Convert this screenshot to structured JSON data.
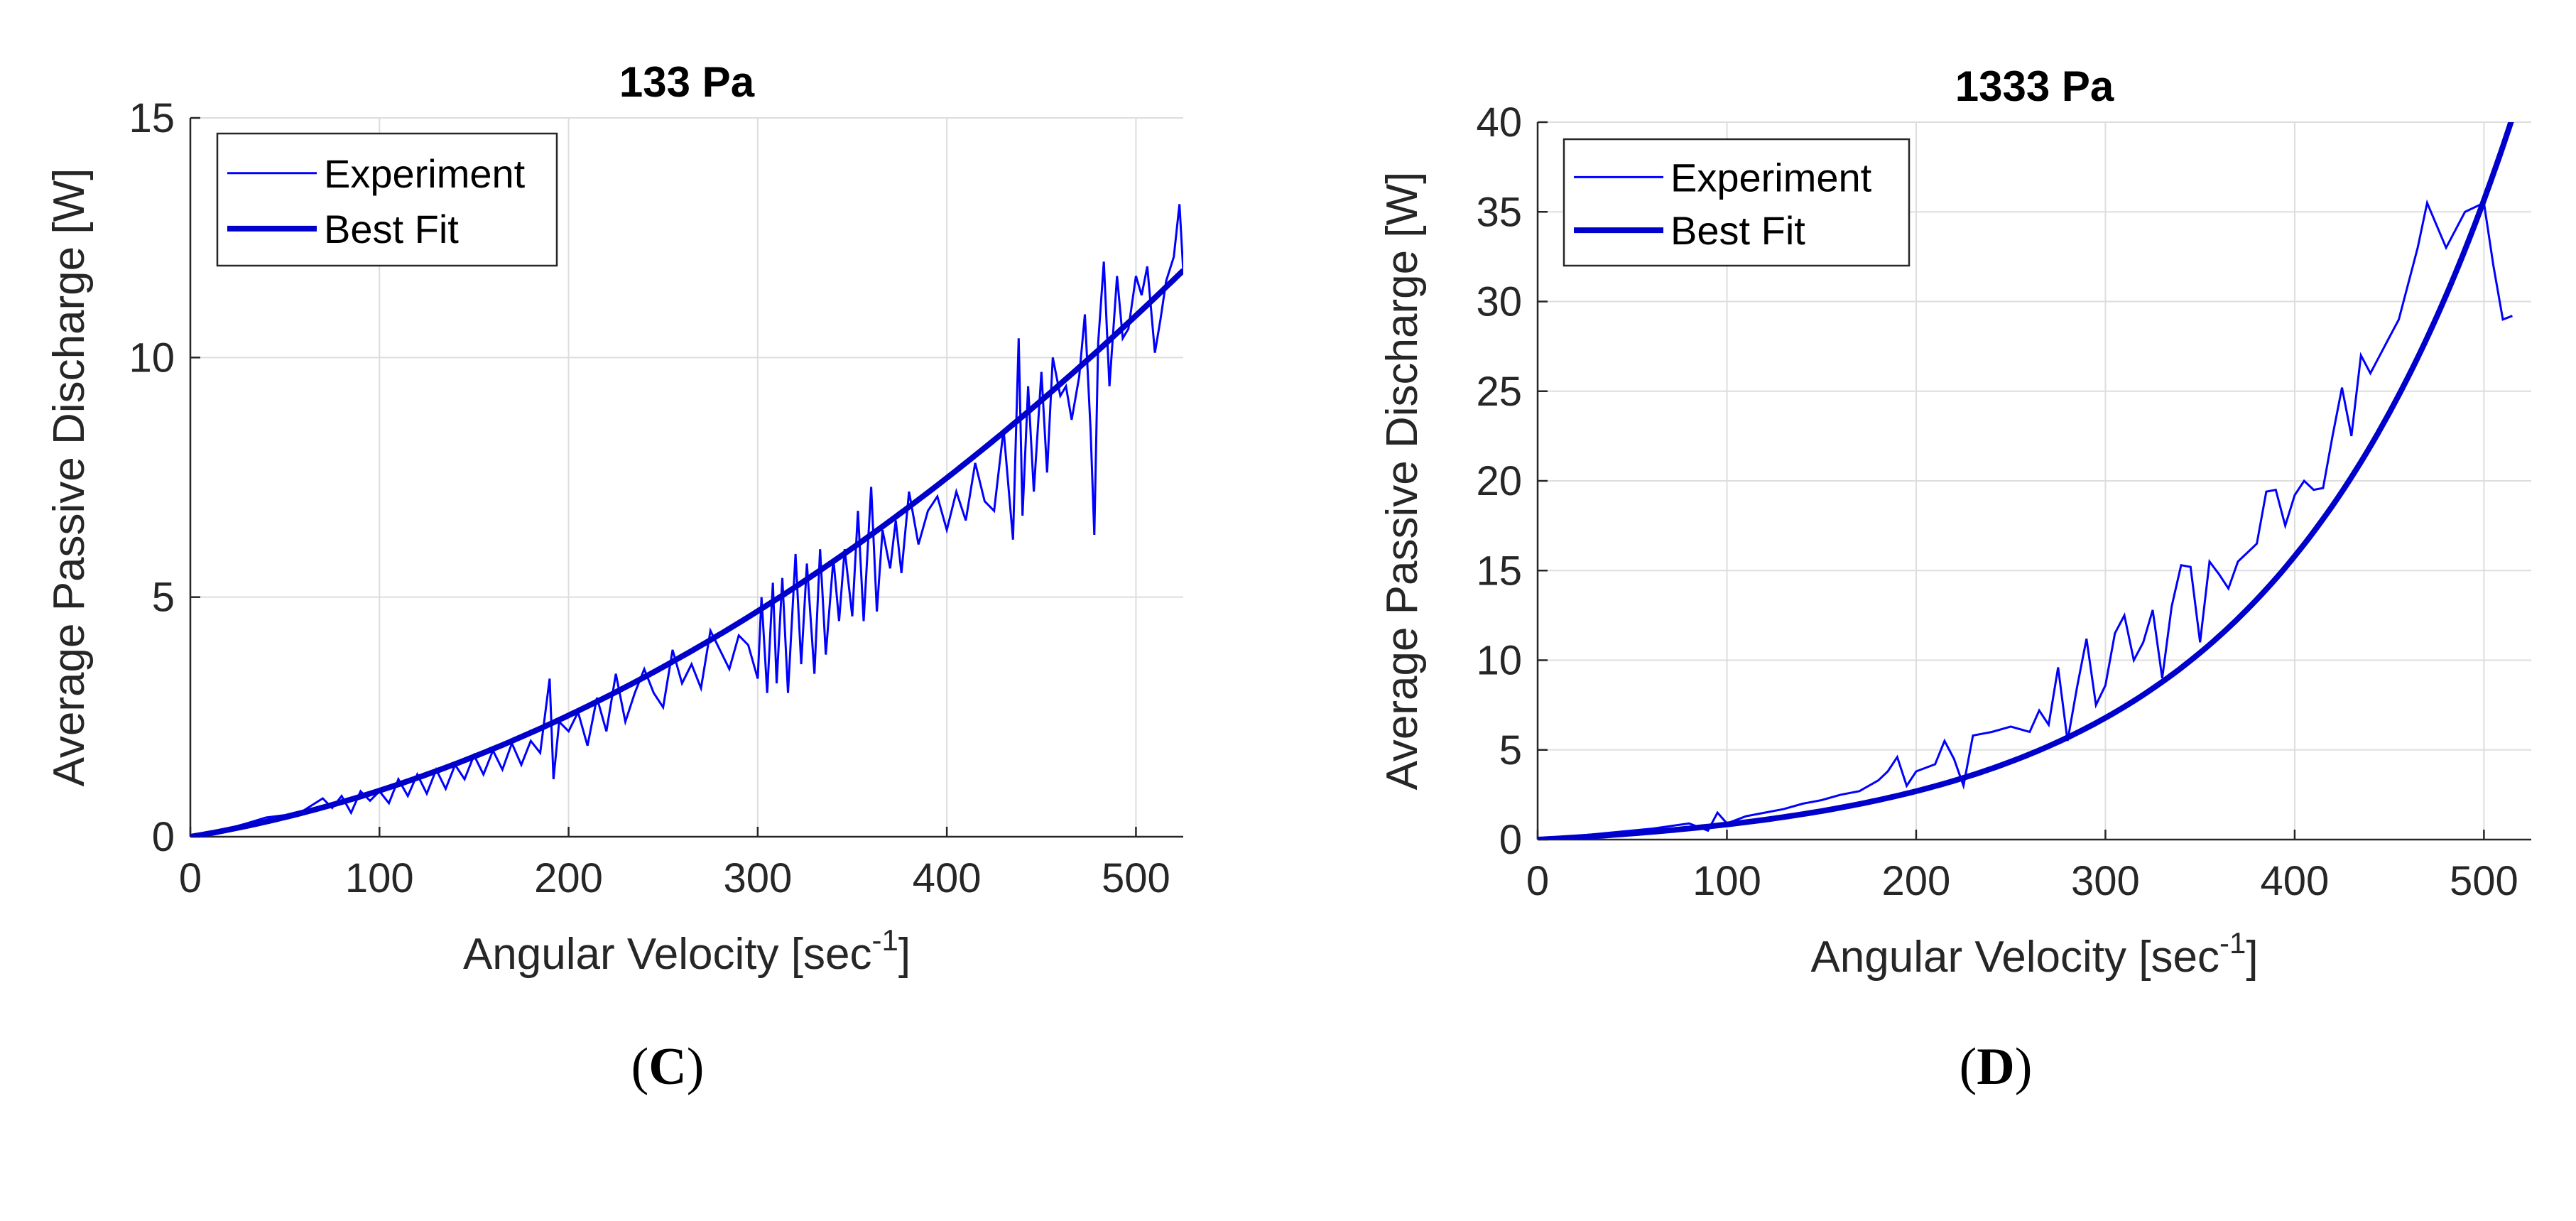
{
  "chart_data": [
    {
      "type": "line",
      "title": "133 Pa",
      "xlabel": "Angular Velocity [sec",
      "xlabel_sup": "-1",
      "xlabel_end": "]",
      "ylabel": "Average Passive Discharge [W]",
      "xlim": [
        0,
        525
      ],
      "ylim": [
        0,
        15
      ],
      "xticks": [
        0,
        100,
        200,
        300,
        400,
        500
      ],
      "yticks": [
        0,
        5,
        10,
        15
      ],
      "grid": true,
      "legend_position": "top-left",
      "fit_model": {
        "kind": "poly",
        "a": 0.0066,
        "b": 3.03e-05
      },
      "series": [
        {
          "name": "Experiment",
          "style": "thin",
          "x": [
            0,
            10,
            20,
            30,
            40,
            50,
            60,
            70,
            75,
            80,
            85,
            90,
            95,
            100,
            105,
            110,
            115,
            120,
            125,
            130,
            135,
            140,
            145,
            150,
            155,
            160,
            165,
            170,
            175,
            180,
            185,
            190,
            192,
            195,
            200,
            205,
            210,
            215,
            220,
            225,
            230,
            235,
            240,
            245,
            250,
            255,
            260,
            265,
            270,
            275,
            280,
            285,
            290,
            295,
            300,
            302,
            305,
            308,
            310,
            313,
            316,
            320,
            323,
            326,
            330,
            333,
            336,
            340,
            343,
            346,
            350,
            353,
            356,
            360,
            363,
            366,
            370,
            373,
            376,
            380,
            385,
            390,
            395,
            400,
            405,
            410,
            415,
            420,
            425,
            430,
            435,
            438,
            440,
            443,
            446,
            450,
            453,
            456,
            460,
            463,
            466,
            470,
            473,
            476,
            478,
            480,
            483,
            486,
            490,
            493,
            496,
            500,
            503,
            506,
            510,
            513,
            516,
            520,
            523,
            525
          ],
          "y": [
            0,
            0.08,
            0.17,
            0.28,
            0.4,
            0.45,
            0.55,
            0.8,
            0.6,
            0.85,
            0.5,
            0.95,
            0.75,
            0.95,
            0.7,
            1.2,
            0.85,
            1.3,
            0.9,
            1.4,
            1.0,
            1.5,
            1.2,
            1.7,
            1.3,
            1.8,
            1.4,
            1.95,
            1.5,
            2.0,
            1.75,
            3.3,
            1.2,
            2.4,
            2.2,
            2.6,
            1.9,
            2.9,
            2.2,
            3.4,
            2.4,
            3.0,
            3.5,
            3.0,
            2.7,
            3.9,
            3.2,
            3.6,
            3.1,
            4.3,
            3.9,
            3.5,
            4.2,
            4.0,
            3.3,
            5.0,
            3.0,
            5.3,
            3.2,
            5.4,
            3.0,
            5.9,
            3.6,
            5.7,
            3.4,
            6.0,
            3.8,
            5.8,
            4.5,
            6.0,
            4.6,
            6.8,
            4.5,
            7.3,
            4.7,
            6.4,
            5.6,
            6.6,
            5.5,
            7.2,
            6.1,
            6.8,
            7.1,
            6.4,
            7.2,
            6.6,
            7.8,
            7.0,
            6.8,
            8.5,
            6.2,
            10.4,
            6.7,
            9.4,
            7.2,
            9.7,
            7.6,
            10.0,
            9.2,
            9.4,
            8.7,
            9.6,
            10.9,
            8.5,
            6.3,
            10.3,
            12.0,
            9.4,
            11.7,
            10.4,
            10.6,
            11.7,
            11.3,
            11.9,
            10.1,
            10.8,
            11.6,
            12.1,
            13.2,
            11.8
          ]
        },
        {
          "name": "Best Fit",
          "style": "thick"
        }
      ],
      "caption": "C"
    },
    {
      "type": "line",
      "title": "1333 Pa",
      "xlabel": "Angular Velocity [sec",
      "xlabel_sup": "-1",
      "xlabel_end": "]",
      "ylabel": "Average Passive Discharge [W]",
      "xlim": [
        0,
        525
      ],
      "ylim": [
        0,
        40
      ],
      "xticks": [
        0,
        100,
        200,
        300,
        400,
        500
      ],
      "yticks": [
        0,
        5,
        10,
        15,
        20,
        25,
        30,
        35,
        40
      ],
      "grid": true,
      "legend_position": "top-left",
      "fit_model": {
        "kind": "exp",
        "A": 0.7,
        "k": 0.0079,
        "c": -0.7
      },
      "series": [
        {
          "name": "Experiment",
          "style": "thin",
          "x": [
            0,
            20,
            40,
            60,
            80,
            90,
            95,
            100,
            110,
            120,
            130,
            140,
            150,
            160,
            170,
            180,
            185,
            190,
            195,
            200,
            210,
            215,
            220,
            225,
            230,
            240,
            250,
            260,
            265,
            270,
            275,
            280,
            285,
            290,
            295,
            300,
            305,
            310,
            315,
            320,
            325,
            330,
            335,
            340,
            345,
            350,
            355,
            360,
            365,
            370,
            380,
            385,
            390,
            395,
            400,
            405,
            410,
            415,
            420,
            425,
            430,
            435,
            440,
            445,
            450,
            455,
            460,
            465,
            470,
            480,
            490,
            500,
            505,
            510,
            515
          ],
          "y": [
            0,
            0.2,
            0.4,
            0.6,
            0.9,
            0.5,
            1.5,
            0.9,
            1.3,
            1.5,
            1.7,
            2.0,
            2.2,
            2.5,
            2.7,
            3.3,
            3.8,
            4.6,
            3.0,
            3.8,
            4.2,
            5.5,
            4.5,
            3.0,
            5.8,
            6.0,
            6.3,
            6.0,
            7.2,
            6.4,
            9.6,
            5.5,
            8.5,
            11.2,
            7.5,
            8.6,
            11.5,
            12.5,
            10.0,
            11.0,
            12.8,
            9.0,
            13.0,
            15.3,
            15.2,
            11.0,
            15.5,
            14.8,
            14.0,
            15.5,
            16.5,
            19.4,
            19.5,
            17.5,
            19.2,
            20.0,
            19.5,
            19.6,
            22.5,
            25.2,
            22.5,
            27.0,
            26.0,
            27.0,
            28.0,
            29.0,
            31.0,
            33.0,
            35.5,
            33.0,
            35.0,
            35.5,
            32.0,
            29.0,
            29.2
          ]
        },
        {
          "name": "Best Fit",
          "style": "thick"
        }
      ],
      "caption": "D"
    }
  ]
}
